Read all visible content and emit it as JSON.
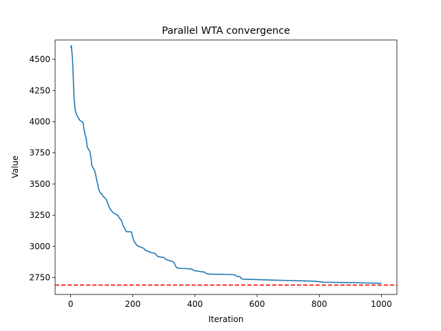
{
  "chart_data": {
    "type": "line",
    "title": "Parallel WTA convergence",
    "xlabel": "Iteration",
    "ylabel": "Value",
    "xlim": [
      -50,
      1050
    ],
    "ylim": [
      2615,
      4655
    ],
    "x_ticks": [
      0,
      200,
      400,
      600,
      800,
      1000
    ],
    "y_ticks": [
      2750,
      3000,
      3250,
      3500,
      3750,
      4000,
      4250,
      4500
    ],
    "grid": false,
    "legend": "none",
    "series": [
      {
        "color": "#1f77b4",
        "points": [
          [
            0,
            4590
          ],
          [
            2,
            4610
          ],
          [
            4,
            4560
          ],
          [
            6,
            4500
          ],
          [
            8,
            4380
          ],
          [
            10,
            4240
          ],
          [
            12,
            4150
          ],
          [
            15,
            4090
          ],
          [
            20,
            4050
          ],
          [
            25,
            4030
          ],
          [
            30,
            4010
          ],
          [
            37,
            4000
          ],
          [
            40,
            3990
          ],
          [
            43,
            3940
          ],
          [
            47,
            3890
          ],
          [
            50,
            3870
          ],
          [
            53,
            3800
          ],
          [
            57,
            3780
          ],
          [
            62,
            3760
          ],
          [
            66,
            3700
          ],
          [
            68,
            3650
          ],
          [
            72,
            3630
          ],
          [
            77,
            3610
          ],
          [
            80,
            3580
          ],
          [
            84,
            3530
          ],
          [
            87,
            3500
          ],
          [
            90,
            3460
          ],
          [
            95,
            3430
          ],
          [
            100,
            3420
          ],
          [
            105,
            3400
          ],
          [
            110,
            3390
          ],
          [
            116,
            3370
          ],
          [
            120,
            3340
          ],
          [
            125,
            3310
          ],
          [
            130,
            3290
          ],
          [
            135,
            3275
          ],
          [
            140,
            3265
          ],
          [
            147,
            3255
          ],
          [
            152,
            3250
          ],
          [
            156,
            3230
          ],
          [
            160,
            3220
          ],
          [
            165,
            3200
          ],
          [
            168,
            3170
          ],
          [
            173,
            3150
          ],
          [
            177,
            3125
          ],
          [
            180,
            3118
          ],
          [
            190,
            3118
          ],
          [
            196,
            3115
          ],
          [
            200,
            3070
          ],
          [
            204,
            3040
          ],
          [
            210,
            3020
          ],
          [
            215,
            3005
          ],
          [
            225,
            2995
          ],
          [
            235,
            2985
          ],
          [
            240,
            2970
          ],
          [
            250,
            2960
          ],
          [
            260,
            2950
          ],
          [
            270,
            2945
          ],
          [
            275,
            2935
          ],
          [
            280,
            2920
          ],
          [
            288,
            2915
          ],
          [
            300,
            2912
          ],
          [
            305,
            2900
          ],
          [
            310,
            2892
          ],
          [
            320,
            2885
          ],
          [
            327,
            2880
          ],
          [
            333,
            2870
          ],
          [
            337,
            2845
          ],
          [
            342,
            2828
          ],
          [
            348,
            2825
          ],
          [
            360,
            2823
          ],
          [
            375,
            2822
          ],
          [
            390,
            2818
          ],
          [
            395,
            2810
          ],
          [
            400,
            2805
          ],
          [
            410,
            2802
          ],
          [
            418,
            2798
          ],
          [
            430,
            2795
          ],
          [
            435,
            2785
          ],
          [
            440,
            2780
          ],
          [
            455,
            2778
          ],
          [
            470,
            2777
          ],
          [
            500,
            2776
          ],
          [
            520,
            2774
          ],
          [
            530,
            2770
          ],
          [
            535,
            2760
          ],
          [
            545,
            2757
          ],
          [
            550,
            2740
          ],
          [
            560,
            2737
          ],
          [
            600,
            2734
          ],
          [
            650,
            2730
          ],
          [
            700,
            2727
          ],
          [
            750,
            2724
          ],
          [
            785,
            2721
          ],
          [
            800,
            2717
          ],
          [
            815,
            2713
          ],
          [
            840,
            2712
          ],
          [
            880,
            2711
          ],
          [
            920,
            2710
          ],
          [
            950,
            2707
          ],
          [
            1000,
            2705
          ]
        ]
      }
    ],
    "reference_line": {
      "y": 2690,
      "color": "#ff0000",
      "style": "dashed"
    }
  }
}
